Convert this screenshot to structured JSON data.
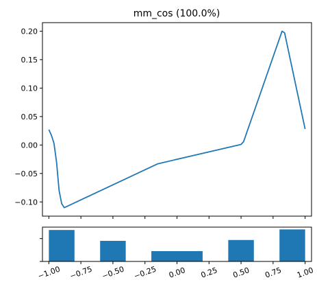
{
  "chart_data": [
    {
      "type": "line",
      "title": "mm_cos (100.0%)",
      "xlabel": "",
      "ylabel": "",
      "xlim": [
        -1.05,
        1.05
      ],
      "ylim": [
        -0.125,
        0.215
      ],
      "grid": false,
      "color": "#1f77b4",
      "x": [
        -1.0,
        -0.98,
        -0.96,
        -0.94,
        -0.92,
        -0.9,
        -0.88,
        -0.86,
        -0.15,
        0.5,
        0.52,
        0.82,
        0.84,
        1.0
      ],
      "y": [
        0.027,
        0.017,
        0.003,
        -0.03,
        -0.08,
        -0.103,
        -0.11,
        -0.108,
        -0.033,
        0.001,
        0.006,
        0.2,
        0.197,
        0.028
      ],
      "yticks": [
        "0.20",
        "0.15",
        "0.10",
        "0.05",
        "0.00",
        "−0.05",
        "−0.10"
      ],
      "ytick_values": [
        0.2,
        0.15,
        0.1,
        0.05,
        0.0,
        -0.05,
        -0.1
      ]
    },
    {
      "type": "bar",
      "color": "#1f77b4",
      "xlim": [
        -1.05,
        1.05
      ],
      "ylim": [
        0,
        1.2
      ],
      "bars": [
        {
          "x0": -1.0,
          "x1": -0.8,
          "value": 1.1
        },
        {
          "x0": -0.6,
          "x1": -0.4,
          "value": 0.72
        },
        {
          "x0": -0.2,
          "x1": 0.2,
          "value": 0.36
        },
        {
          "x0": 0.4,
          "x1": 0.6,
          "value": 0.75
        },
        {
          "x0": 0.8,
          "x1": 1.0,
          "value": 1.12
        }
      ],
      "ytick_values": [
        0,
        0.8
      ],
      "xticks": [
        "−1.00",
        "−0.75",
        "−0.50",
        "−0.25",
        "0.00",
        "0.25",
        "0.50",
        "0.75",
        "1.00"
      ],
      "xtick_values": [
        -1.0,
        -0.75,
        -0.5,
        -0.25,
        0.0,
        0.25,
        0.5,
        0.75,
        1.0
      ]
    }
  ]
}
